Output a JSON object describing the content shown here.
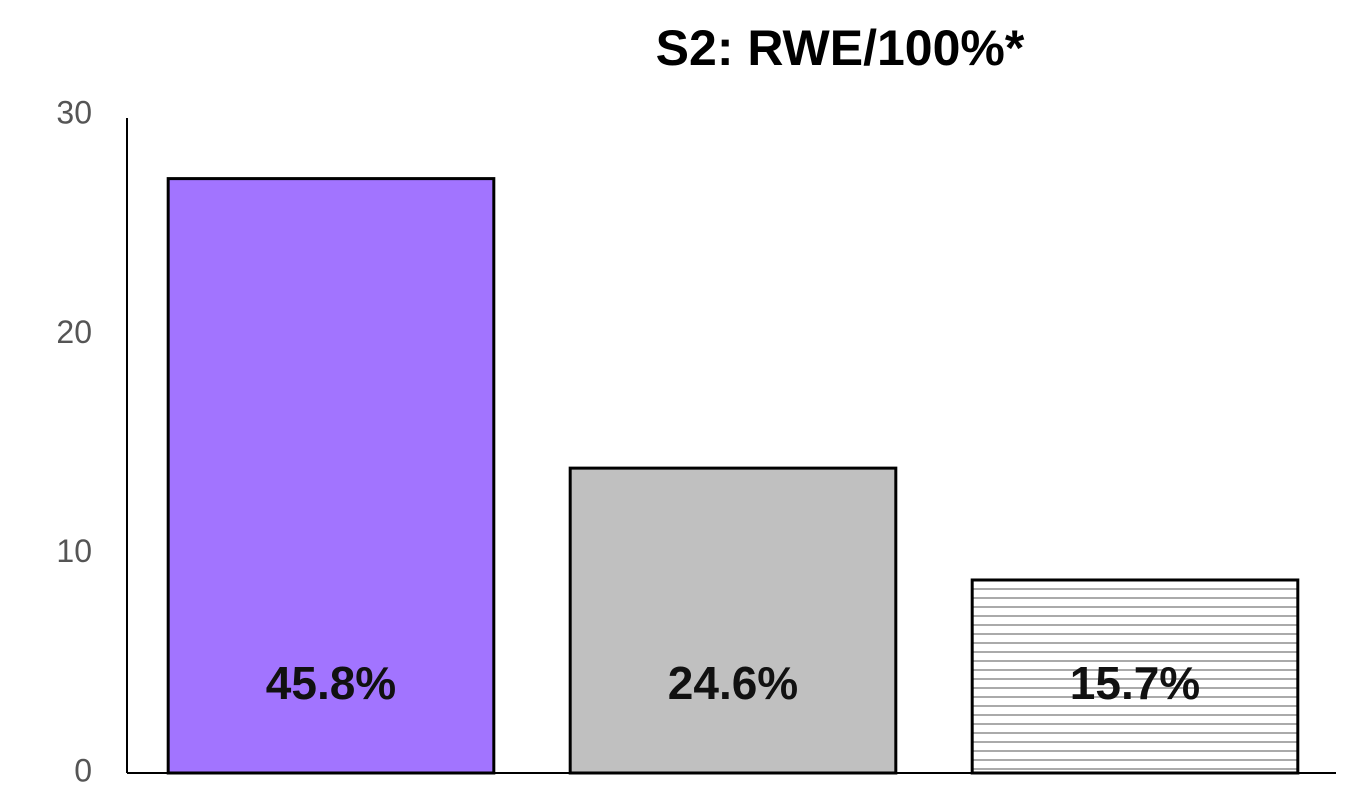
{
  "chart_data": {
    "type": "bar",
    "title": "S2:  RWE/100%*",
    "categories": [
      null,
      null,
      null
    ],
    "values": [
      27.1,
      13.9,
      8.8
    ],
    "colors": [
      "#a274ff",
      "#c0c0c0",
      "#ffffff"
    ],
    "hatches": [
      null,
      null,
      "horizontal"
    ],
    "annotations": [
      "45.8%",
      "24.6%",
      "15.7%"
    ],
    "ylim": [
      0,
      30
    ],
    "yticks": [
      0,
      10,
      20,
      30
    ],
    "grid": false
  }
}
